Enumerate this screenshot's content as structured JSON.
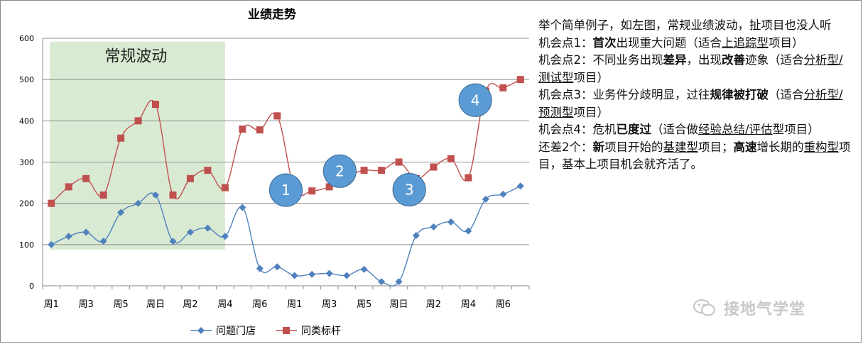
{
  "chart_data": {
    "type": "line",
    "title": "业绩走势",
    "categories": [
      "周1",
      "周2",
      "周3",
      "周4",
      "周5",
      "周6",
      "周日",
      "周1",
      "周2",
      "周3",
      "周4",
      "周5",
      "周6",
      "周日",
      "周1",
      "周2",
      "周3",
      "周4",
      "周5",
      "周6",
      "周日",
      "周1",
      "周2",
      "周3",
      "周4",
      "周5",
      "周6",
      "周日"
    ],
    "x_tick_labels": [
      "周1",
      "周3",
      "周5",
      "周日",
      "周2",
      "周4",
      "周6",
      "周1",
      "周3",
      "周5",
      "周日",
      "周2",
      "周4",
      "周6"
    ],
    "ylim": [
      0,
      600
    ],
    "yticks": [
      0,
      100,
      200,
      300,
      400,
      500,
      600
    ],
    "grid": true,
    "legend": "bottom",
    "series": [
      {
        "name": "问题门店",
        "color": "#4f81bd",
        "marker": "diamond",
        "values": [
          100,
          120,
          130,
          108,
          178,
          200,
          220,
          108,
          130,
          140,
          120,
          190,
          42,
          46,
          25,
          28,
          30,
          25,
          40,
          10,
          10,
          122,
          143,
          155,
          133,
          210,
          222,
          242
        ]
      },
      {
        "name": "同类标杆",
        "color": "#c0504d",
        "marker": "square",
        "values": [
          200,
          240,
          260,
          220,
          358,
          400,
          440,
          220,
          260,
          280,
          238,
          380,
          378,
          412,
          235,
          230,
          240,
          265,
          280,
          280,
          300,
          260,
          288,
          308,
          262,
          472,
          480,
          500
        ]
      }
    ],
    "annotations": {
      "region": {
        "label": "常规波动",
        "from_index": 0,
        "to_index": 10,
        "y_range": [
          88,
          592
        ],
        "color": "#d9ead3"
      },
      "markers": [
        {
          "label": "1",
          "index": 13.5,
          "y": 232
        },
        {
          "label": "2",
          "index": 16.6,
          "y": 278
        },
        {
          "label": "3",
          "index": 20.6,
          "y": 233
        },
        {
          "label": "4",
          "index": 24.4,
          "y": 450
        }
      ]
    }
  },
  "notes": {
    "intro": "举个简单例子，如左图，常规业绩波动，扯项目也没人听",
    "p1": {
      "a": "机会点1：",
      "b": "首次",
      "c": "出现重大问题（适合",
      "d": "上追踪型",
      "e": "项目）"
    },
    "p2": {
      "a": "机会点2：不同业务出现",
      "b": "差异",
      "c": "，出现",
      "d": "改善",
      "e": "迹象（适合",
      "f": "分析型/测试型",
      "g": "项目）"
    },
    "p3": {
      "a": "机会点3：业务件分歧明显，过往",
      "b": "规律被打破",
      "c": "（适合",
      "d": "分析型/预测型",
      "e": "项目）"
    },
    "p4": {
      "a": "机会点4：危机",
      "b": "已度过",
      "c": "（适合做",
      "d": "经验总结/评估",
      "e": "型项目）"
    },
    "p5": {
      "a": "还差2个：",
      "b": "新",
      "c": "项目开始的",
      "d": "基建型",
      "e": "项目；",
      "f": "高速",
      "g": "增长期的",
      "h": "重构型",
      "i": "项目，基本上项目机会就齐活了。"
    }
  },
  "watermark": {
    "text": "接地气学堂"
  }
}
